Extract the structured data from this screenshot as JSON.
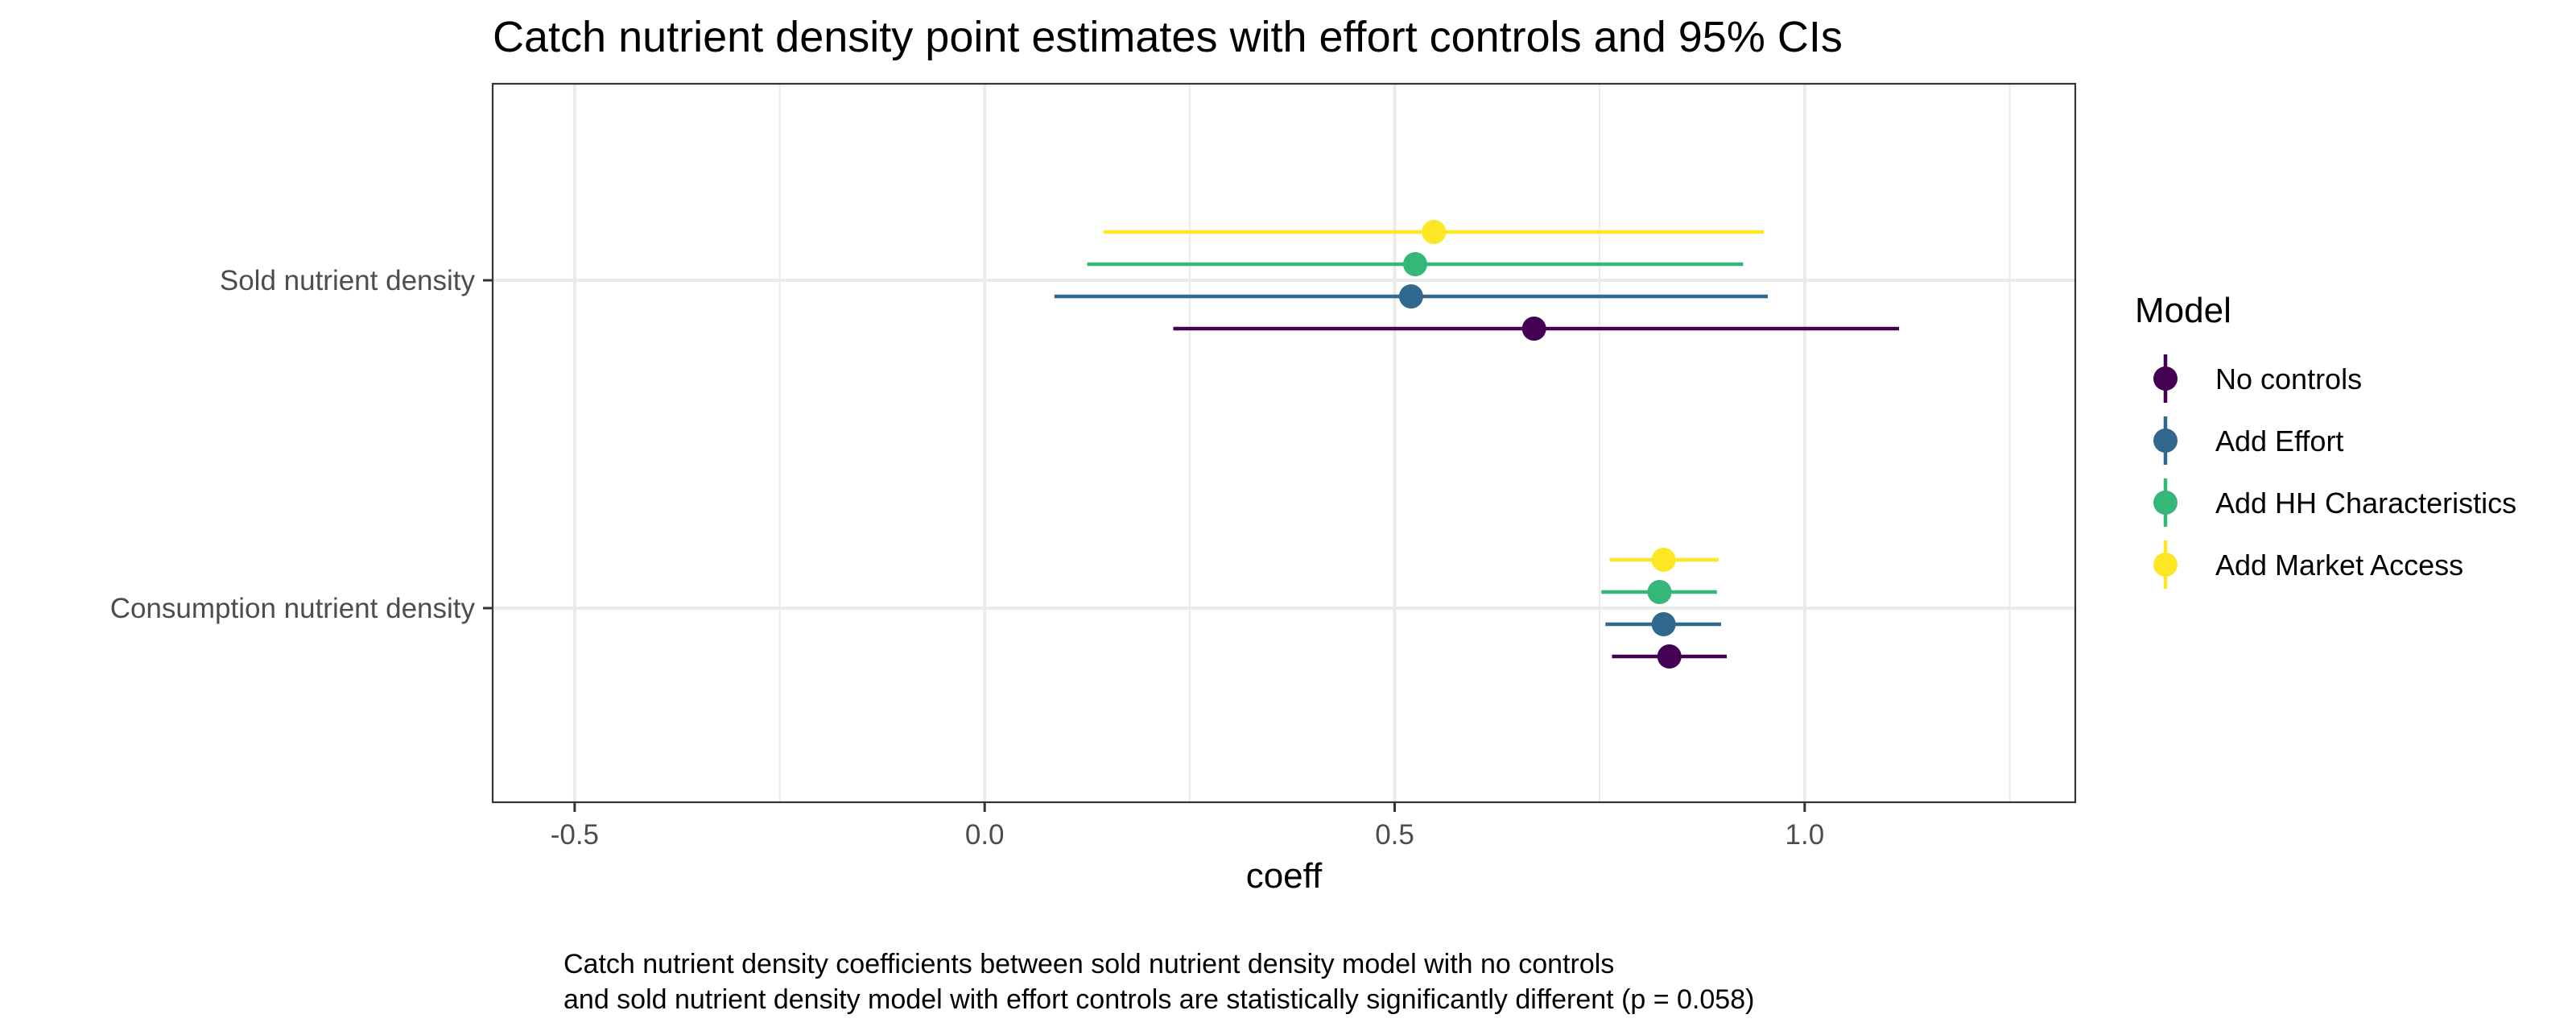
{
  "chart_data": {
    "type": "scatter",
    "title": "Catch nutrient density point estimates with effort controls and 95% CIs",
    "xlabel": "coeff",
    "ylabel": "",
    "xlim": [
      -0.6,
      1.33
    ],
    "x_ticks": [
      -0.5,
      0.0,
      0.5,
      1.0
    ],
    "x_tick_labels": [
      "-0.5",
      "0.0",
      "0.5",
      "1.0"
    ],
    "categories": [
      "Sold nutrient density",
      "Consumption nutrient density"
    ],
    "grid": true,
    "legend_title": "Model",
    "legend_position": "right",
    "series": [
      {
        "name": "No controls",
        "color": "#440154",
        "points": [
          {
            "category": "Sold nutrient density",
            "estimate": 0.67,
            "ci_low": 0.23,
            "ci_high": 1.115
          },
          {
            "category": "Consumption nutrient density",
            "estimate": 0.835,
            "ci_low": 0.765,
            "ci_high": 0.905
          }
        ]
      },
      {
        "name": "Add Effort",
        "color": "#31688E",
        "points": [
          {
            "category": "Sold nutrient density",
            "estimate": 0.52,
            "ci_low": 0.085,
            "ci_high": 0.955
          },
          {
            "category": "Consumption nutrient density",
            "estimate": 0.828,
            "ci_low": 0.757,
            "ci_high": 0.898
          }
        ]
      },
      {
        "name": "Add HH Characteristics",
        "color": "#35B779",
        "points": [
          {
            "category": "Sold nutrient density",
            "estimate": 0.525,
            "ci_low": 0.125,
            "ci_high": 0.925
          },
          {
            "category": "Consumption nutrient density",
            "estimate": 0.823,
            "ci_low": 0.752,
            "ci_high": 0.893
          }
        ]
      },
      {
        "name": "Add Market Access",
        "color": "#FDE725",
        "points": [
          {
            "category": "Sold nutrient density",
            "estimate": 0.548,
            "ci_low": 0.145,
            "ci_high": 0.95
          },
          {
            "category": "Consumption nutrient density",
            "estimate": 0.828,
            "ci_low": 0.762,
            "ci_high": 0.895
          }
        ]
      }
    ],
    "caption": [
      "Catch nutrient density coefficients between sold nutrient density model with no controls",
      "and sold nutrient density model with effort controls are statistically significantly different (p = 0.058)"
    ]
  }
}
